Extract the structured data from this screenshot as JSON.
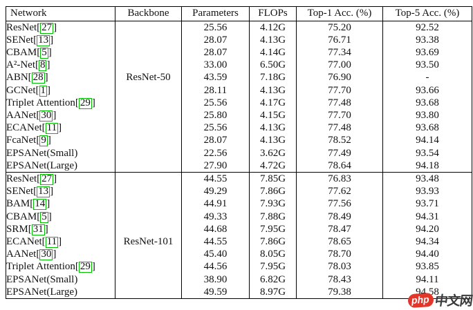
{
  "columns": [
    "Network",
    "Backbone",
    "Parameters",
    "FLOPs",
    "Top-1 Acc. (%)",
    "Top-5 Acc. (%)"
  ],
  "groups": [
    {
      "backbone": "ResNet-50",
      "backbone_row": 4,
      "rows": [
        {
          "network": "ResNet",
          "cite": "27",
          "params": "25.56",
          "flops": "4.12G",
          "top1": "75.20",
          "top5": "92.52",
          "bold": []
        },
        {
          "network": "SENet",
          "cite": "13",
          "params": "28.07",
          "flops": "4.13G",
          "top1": "76.71",
          "top5": "93.38",
          "bold": []
        },
        {
          "network": "CBAM",
          "cite": "5",
          "params": "28.07",
          "flops": "4.14G",
          "top1": "77.34",
          "top5": "93.69",
          "bold": []
        },
        {
          "network": "A²-Net",
          "cite": "8",
          "params": "33.00",
          "flops": "6.50G",
          "top1": "77.00",
          "top5": "93.50",
          "bold": []
        },
        {
          "network": "ABN",
          "cite": "28",
          "params": "43.59",
          "flops": "7.18G",
          "top1": "76.90",
          "top5": "-",
          "bold": []
        },
        {
          "network": "GCNet",
          "cite": "1",
          "params": "28.11",
          "flops": "4.13G",
          "top1": "77.70",
          "top5": "93.66",
          "bold": []
        },
        {
          "network": "Triplet Attention",
          "cite": "29",
          "params": "25.56",
          "flops": "4.17G",
          "top1": "77.48",
          "top5": "93.68",
          "bold": []
        },
        {
          "network": "AANet",
          "cite": "30",
          "params": "25.80",
          "flops": "4.15G",
          "top1": "77.70",
          "top5": "93.80",
          "bold": []
        },
        {
          "network": "ECANet",
          "cite": "11",
          "params": "25.56",
          "flops": "4.13G",
          "top1": "77.48",
          "top5": "93.68",
          "bold": []
        },
        {
          "network": "FcaNet",
          "cite": "9",
          "params": "28.07",
          "flops": "4.13G",
          "top1": "78.52",
          "top5": "94.14",
          "bold": []
        },
        {
          "network": "EPSANet(Small)",
          "cite": null,
          "params": "22.56",
          "flops": "3.62G",
          "top1": "77.49",
          "top5": "93.54",
          "bold": [
            "params",
            "flops"
          ]
        },
        {
          "network": "EPSANet(Large)",
          "cite": null,
          "params": "27.90",
          "flops": "4.72G",
          "top1": "78.64",
          "top5": "94.18",
          "bold": [
            "top1",
            "top5"
          ]
        }
      ]
    },
    {
      "backbone": "ResNet-101",
      "backbone_row": 5,
      "rows": [
        {
          "network": "ResNet",
          "cite": "27",
          "params": "44.55",
          "flops": "7.85G",
          "top1": "76.83",
          "top5": "93.48",
          "bold": []
        },
        {
          "network": "SENet",
          "cite": "13",
          "params": "49.29",
          "flops": "7.86G",
          "top1": "77.62",
          "top5": "93.93",
          "bold": []
        },
        {
          "network": "BAM",
          "cite": "14",
          "params": "44.91",
          "flops": "7.93G",
          "top1": "77.56",
          "top5": "93.71",
          "bold": []
        },
        {
          "network": "CBAM",
          "cite": "5",
          "params": "49.33",
          "flops": "7.88G",
          "top1": "78.49",
          "top5": "94.31",
          "bold": []
        },
        {
          "network": "SRM",
          "cite": "31",
          "params": "44.68",
          "flops": "7.95G",
          "top1": "78.47",
          "top5": "94.20",
          "bold": []
        },
        {
          "network": "ECANet",
          "cite": "11",
          "params": "44.55",
          "flops": "7.86G",
          "top1": "78.65",
          "top5": "94.34",
          "bold": []
        },
        {
          "network": "AANet",
          "cite": "30",
          "params": "45.40",
          "flops": "8.05G",
          "top1": "78.70",
          "top5": "94.40",
          "bold": []
        },
        {
          "network": "Triplet Attention",
          "cite": "29",
          "params": "44.56",
          "flops": "7.95G",
          "top1": "78.03",
          "top5": "93.85",
          "bold": []
        },
        {
          "network": "EPSANet(Small)",
          "cite": null,
          "params": "38.90",
          "flops": "6.82G",
          "top1": "78.43",
          "top5": "94.11",
          "bold": [
            "params",
            "flops"
          ]
        },
        {
          "network": "EPSANet(Large)",
          "cite": null,
          "params": "49.59",
          "flops": "8.97G",
          "top1": "79.38",
          "top5": "94.58",
          "bold": [
            "top1",
            "top5"
          ]
        }
      ]
    }
  ],
  "watermark": {
    "badge": "php",
    "site": "中文网"
  },
  "colors": {
    "cite_green": "#00bf00",
    "watermark_red": "#e3362b"
  }
}
